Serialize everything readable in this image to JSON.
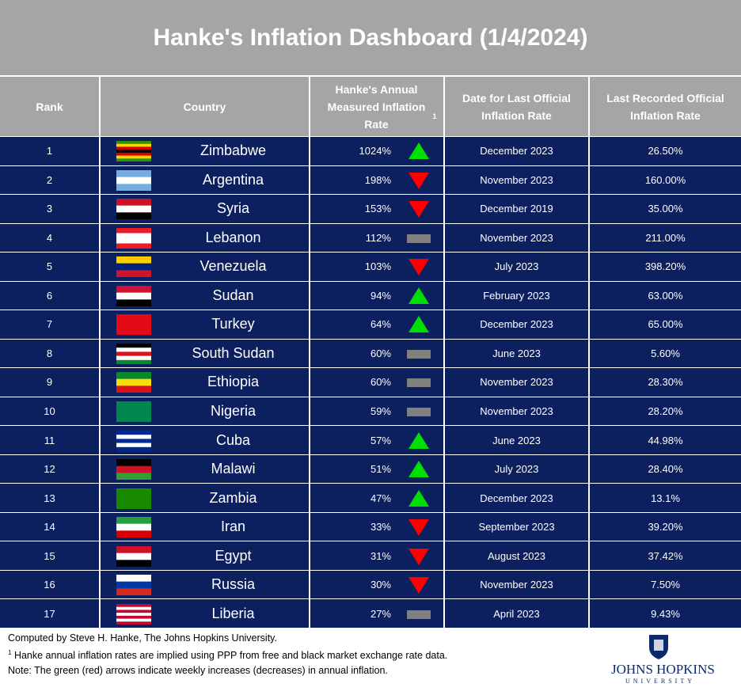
{
  "header": {
    "title": "Hanke's Inflation Dashboard (1/4/2024)"
  },
  "table": {
    "columns": [
      "Rank",
      "Country",
      "Hanke's Annual Measured Inflation Rate",
      "Date for Last Official Inflation Rate",
      "Last Recorded Official Inflation Rate"
    ],
    "column_note": "1",
    "rows": [
      {
        "rank": 1,
        "country": "Zimbabwe",
        "hanke": "1024%",
        "trend": "up",
        "date": "December 2023",
        "official": "26.50%"
      },
      {
        "rank": 2,
        "country": "Argentina",
        "hanke": "198%",
        "trend": "down",
        "date": "November 2023",
        "official": "160.00%"
      },
      {
        "rank": 3,
        "country": "Syria",
        "hanke": "153%",
        "trend": "down",
        "date": "December 2019",
        "official": "35.00%"
      },
      {
        "rank": 4,
        "country": "Lebanon",
        "hanke": "112%",
        "trend": "flat",
        "date": "November 2023",
        "official": "211.00%"
      },
      {
        "rank": 5,
        "country": "Venezuela",
        "hanke": "103%",
        "trend": "down",
        "date": "July 2023",
        "official": "398.20%"
      },
      {
        "rank": 6,
        "country": "Sudan",
        "hanke": "94%",
        "trend": "up",
        "date": "February 2023",
        "official": "63.00%"
      },
      {
        "rank": 7,
        "country": "Turkey",
        "hanke": "64%",
        "trend": "up",
        "date": "December 2023",
        "official": "65.00%"
      },
      {
        "rank": 8,
        "country": "South Sudan",
        "hanke": "60%",
        "trend": "flat",
        "date": "June 2023",
        "official": "5.60%"
      },
      {
        "rank": 9,
        "country": "Ethiopia",
        "hanke": "60%",
        "trend": "flat",
        "date": "November 2023",
        "official": "28.30%"
      },
      {
        "rank": 10,
        "country": "Nigeria",
        "hanke": "59%",
        "trend": "flat",
        "date": "November 2023",
        "official": "28.20%"
      },
      {
        "rank": 11,
        "country": "Cuba",
        "hanke": "57%",
        "trend": "up",
        "date": "June 2023",
        "official": "44.98%"
      },
      {
        "rank": 12,
        "country": "Malawi",
        "hanke": "51%",
        "trend": "up",
        "date": "July 2023",
        "official": "28.40%"
      },
      {
        "rank": 13,
        "country": "Zambia",
        "hanke": "47%",
        "trend": "up",
        "date": "December 2023",
        "official": "13.1%"
      },
      {
        "rank": 14,
        "country": "Iran",
        "hanke": "33%",
        "trend": "down",
        "date": "September 2023",
        "official": "39.20%"
      },
      {
        "rank": 15,
        "country": "Egypt",
        "hanke": "31%",
        "trend": "down",
        "date": "August 2023",
        "official": "37.42%"
      },
      {
        "rank": 16,
        "country": "Russia",
        "hanke": "30%",
        "trend": "down",
        "date": "November 2023",
        "official": "7.50%"
      },
      {
        "rank": 17,
        "country": "Liberia",
        "hanke": "27%",
        "trend": "flat",
        "date": "April 2023",
        "official": "9.43%"
      }
    ]
  },
  "footer": {
    "credit": "Computed by Steve H. Hanke, The Johns Hopkins University.",
    "note_mark": "1",
    "note1": "Hanke annual inflation rates are implied using PPP from free and black market exchange rate data.",
    "note2": "Note: The green (red) arrows indicate weekly increases (decreases) in annual inflation.",
    "logo_name": "JOHNS HOPKINS",
    "logo_sub": "UNIVERSITY"
  }
}
